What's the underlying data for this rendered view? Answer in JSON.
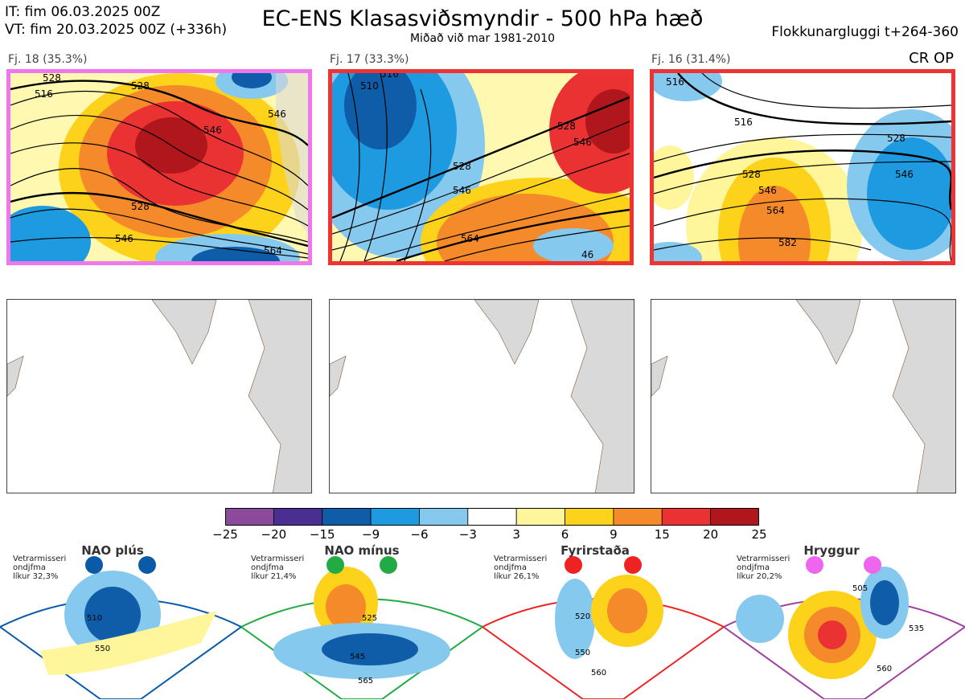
{
  "header": {
    "it_line": "IT: fim 06.03.2025 00Z",
    "vt_line": "VT: fim 20.03.2025 00Z  (+336h)",
    "title": "EC-ENS Klasasviðsmyndir - 500 hPa hæð",
    "subtitle": "Miðað við mar 1981-2010",
    "window": "Flokkunargluggi t+264-360",
    "crop_label": "CR OP"
  },
  "panels": [
    {
      "label": "Fj. 18 (35.3%)",
      "frame_color": "#ee77ee",
      "contours": [
        "516",
        "528",
        "546",
        "528",
        "546",
        "564",
        "546",
        "528"
      ]
    },
    {
      "label": "Fj. 17 (33.3%)",
      "frame_color": "#ee3333",
      "contours": [
        "510",
        "528",
        "546",
        "564",
        "528",
        "546",
        "46",
        "516"
      ]
    },
    {
      "label": "Fj. 16 (31.4%)",
      "frame_color": "#ee3333",
      "contours": [
        "516",
        "528",
        "546",
        "564",
        "582",
        "528",
        "546",
        "516"
      ]
    }
  ],
  "colorbar": {
    "colors": [
      "#8b4a9c",
      "#4b2e91",
      "#0f5ca8",
      "#1d9ae0",
      "#86c9ee",
      "#ffffff",
      "#fff59a",
      "#fdd21a",
      "#f58a2a",
      "#ea3232",
      "#b0171c"
    ],
    "ticks": [
      "−25",
      "−20",
      "−15",
      "−9",
      "−6",
      "−3",
      "3",
      "6",
      "9",
      "15",
      "20",
      "25"
    ]
  },
  "regimes": [
    {
      "name": "NAO plús",
      "note": [
        "Vetrarmisseri",
        "ondjfma",
        "líkur 32,3%"
      ],
      "color": "#0a5aa8",
      "labels": [
        "510",
        "550"
      ]
    },
    {
      "name": "NAO mínus",
      "note": [
        "Vetrarmisseri",
        "ondjfma",
        "líkur 21,4%"
      ],
      "color": "#22aa44",
      "labels": [
        "525",
        "545",
        "565"
      ]
    },
    {
      "name": "Fyrirstaða",
      "note": [
        "Vetrarmisseri",
        "ondjfma",
        "líkur 26,1%"
      ],
      "color": "#ee2222",
      "labels": [
        "520",
        "550",
        "560"
      ]
    },
    {
      "name": "Hryggur",
      "note": [
        "Vetrarmisseri",
        "ondjfma",
        "líkur 20,2%"
      ],
      "color": "#ee66ee",
      "labels": [
        "505",
        "535",
        "560"
      ]
    }
  ]
}
